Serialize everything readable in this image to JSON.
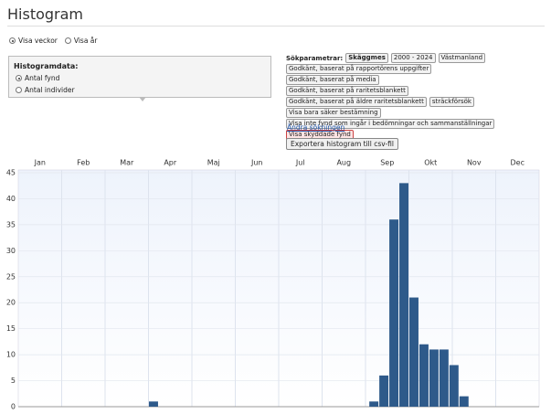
{
  "header": {
    "title": "Histogram"
  },
  "view_options": [
    {
      "label": "Visa veckor",
      "selected": true
    },
    {
      "label": "Visa år",
      "selected": false
    }
  ],
  "histogram_data": {
    "title": "Histogramdata:",
    "options": [
      {
        "label": "Antal fynd",
        "selected": true
      },
      {
        "label": "Antal individer",
        "selected": false
      }
    ]
  },
  "search_parameters": {
    "label": "Sökparametrar:",
    "tags": [
      {
        "text": "Skäggmes",
        "style": "bold"
      },
      {
        "text": "2000 - 2024"
      },
      {
        "text": "Västmanland"
      },
      {
        "text": "Godkänt, baserat på rapportörens uppgifter"
      },
      {
        "text": "Godkänt, baserat på media"
      },
      {
        "text": "Godkänt, baserat på raritetsblankett"
      },
      {
        "text": "Godkänt, baserat på äldre raritetsblankett"
      },
      {
        "text": "sträckförsök"
      },
      {
        "text": "Visa bara säker bestämning"
      },
      {
        "text": "Visa inte fynd som ingår i bedömningar och sammanställningar"
      },
      {
        "text": "Visa skyddade fynd",
        "style": "protected"
      }
    ]
  },
  "change_link": "Ändra sökningen",
  "export_button": "Exportera histogram till csv-fil",
  "chart_data": {
    "type": "bar",
    "color": "#2e5a8a",
    "month_labels": [
      "Jan",
      "Feb",
      "Mar",
      "Apr",
      "Maj",
      "Jun",
      "Jul",
      "Aug",
      "Sep",
      "Okt",
      "Nov",
      "Dec"
    ],
    "categories": [
      null,
      null,
      null,
      null,
      null,
      null,
      null,
      null,
      null,
      null,
      null,
      null,
      null,
      null,
      null,
      null,
      null,
      null,
      null,
      null,
      null,
      null,
      null,
      null,
      null,
      null,
      null,
      null,
      null,
      null,
      null,
      null,
      null,
      null,
      null,
      null,
      null,
      null,
      null,
      null,
      null,
      null,
      null,
      null,
      null,
      null,
      null,
      null,
      null,
      null,
      null,
      null
    ],
    "values": [
      0,
      0,
      0,
      0,
      0,
      0,
      0,
      0,
      0,
      0,
      0,
      0,
      0,
      1,
      0,
      0,
      0,
      0,
      0,
      0,
      0,
      0,
      0,
      0,
      0,
      0,
      0,
      0,
      0,
      0,
      0,
      0,
      0,
      0,
      0,
      1,
      6,
      36,
      43,
      21,
      12,
      11,
      11,
      8,
      2,
      0,
      0,
      0,
      0,
      0,
      0,
      0
    ],
    "ylim": [
      0,
      45
    ],
    "yticks": [
      0,
      5,
      10,
      15,
      20,
      25,
      30,
      35,
      40,
      45
    ],
    "grid": true
  }
}
